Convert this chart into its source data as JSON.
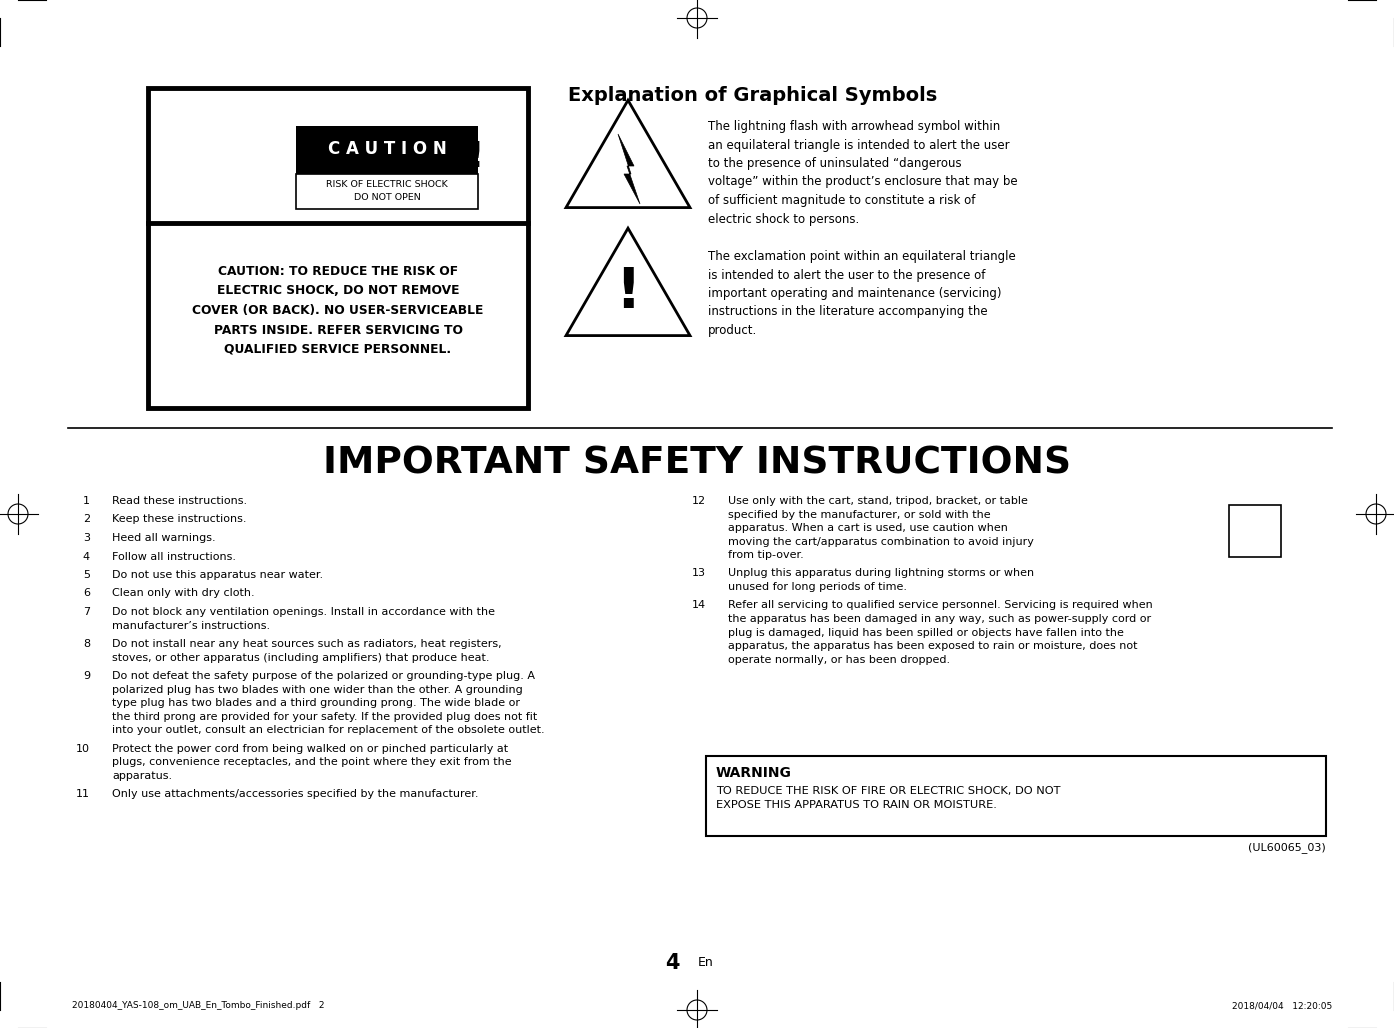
{
  "bg_color": "#ffffff",
  "title_graphical": "Explanation of Graphical Symbols",
  "lightning_desc": "The lightning flash with arrowhead symbol within\nan equilateral triangle is intended to alert the user\nto the presence of uninsulated “dangerous\nvoltage” within the product’s enclosure that may be\nof sufficient magnitude to constitute a risk of\nelectric shock to persons.",
  "exclamation_desc": "The exclamation point within an equilateral triangle\nis intended to alert the user to the presence of\nimportant operating and maintenance (servicing)\ninstructions in the literature accompanying the\nproduct.",
  "safety_title": "IMPORTANT SAFETY INSTRUCTIONS",
  "instructions": [
    [
      "1",
      "Read these instructions."
    ],
    [
      "2",
      "Keep these instructions."
    ],
    [
      "3",
      "Heed all warnings."
    ],
    [
      "4",
      "Follow all instructions."
    ],
    [
      "5",
      "Do not use this apparatus near water."
    ],
    [
      "6",
      "Clean only with dry cloth."
    ],
    [
      "7",
      "Do not block any ventilation openings. Install in accordance with the\nmanufacturer’s instructions."
    ],
    [
      "8",
      "Do not install near any heat sources such as radiators, heat registers,\nstoves, or other apparatus (including amplifiers) that produce heat."
    ],
    [
      "9",
      "Do not defeat the safety purpose of the polarized or grounding-type plug. A\npolarized plug has two blades with one wider than the other. A grounding\ntype plug has two blades and a third grounding prong. The wide blade or\nthe third prong are provided for your safety. If the provided plug does not fit\ninto your outlet, consult an electrician for replacement of the obsolete outlet."
    ],
    [
      "10",
      "Protect the power cord from being walked on or pinched particularly at\nplugs, convenience receptacles, and the point where they exit from the\napparatus."
    ],
    [
      "11",
      "Only use attachments/accessories specified by the manufacturer."
    ]
  ],
  "instructions_right": [
    [
      "12",
      "Use only with the cart, stand, tripod, bracket, or table\nspecified by the manufacturer, or sold with the\napparatus. When a cart is used, use caution when\nmoving the cart/apparatus combination to avoid injury\nfrom tip-over."
    ],
    [
      "13",
      "Unplug this apparatus during lightning storms or when\nunused for long periods of time."
    ],
    [
      "14",
      "Refer all servicing to qualified service personnel. Servicing is required when\nthe apparatus has been damaged in any way, such as power-supply cord or\nplug is damaged, liquid has been spilled or objects have fallen into the\napparatus, the apparatus has been exposed to rain or moisture, does not\noperate normally, or has been dropped."
    ]
  ],
  "caution_box_text": "CAUTION: TO REDUCE THE RISK OF\nELECTRIC SHOCK, DO NOT REMOVE\nCOVER (OR BACK). NO USER-SERVICEABLE\nPARTS INSIDE. REFER SERVICING TO\nQUALIFIED SERVICE PERSONNEL.",
  "caution_label": "C A U T I O N",
  "shock_label": "RISK OF ELECTRIC SHOCK\nDO NOT OPEN",
  "warning_title": "WARNING",
  "warning_text": "TO REDUCE THE RISK OF FIRE OR ELECTRIC SHOCK, DO NOT\nEXPOSE THIS APPARATUS TO RAIN OR MOISTURE.",
  "ul_code": "(UL60065_03)",
  "page_num": "4",
  "page_label": "En",
  "footer_left": "20180404_YAS-108_om_UAB_En_Tombo_Finished.pdf   2",
  "footer_right": "2018/04/04   12:20:05"
}
